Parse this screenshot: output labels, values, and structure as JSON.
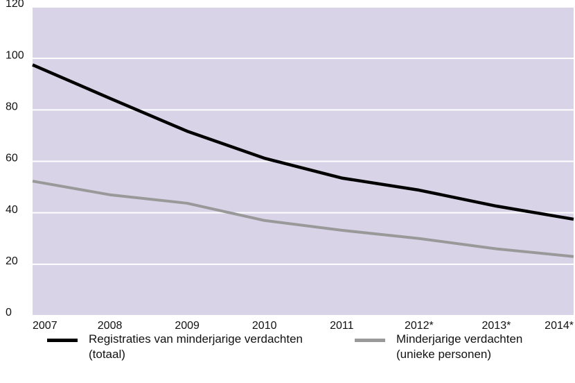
{
  "chart_data": {
    "type": "line",
    "categories": [
      "2007",
      "2008",
      "2009",
      "2010",
      "2011",
      "2012*",
      "2013*",
      "2014*"
    ],
    "series": [
      {
        "name": "Registraties van minderjarige verdachten (totaal)",
        "color": "#000000",
        "values": [
          97.5,
          84.5,
          71.7,
          61.2,
          53.5,
          48.8,
          42.6,
          37.5
        ]
      },
      {
        "name": "Minderjarige verdachten (unieke personen)",
        "color": "#999999",
        "values": [
          52.3,
          47,
          43.7,
          37,
          33.2,
          30,
          26,
          23
        ]
      }
    ],
    "ylim": [
      0,
      120
    ],
    "yticks": [
      0,
      20,
      40,
      60,
      80,
      100,
      120
    ],
    "grid": true,
    "background": "#d8d3e6"
  }
}
